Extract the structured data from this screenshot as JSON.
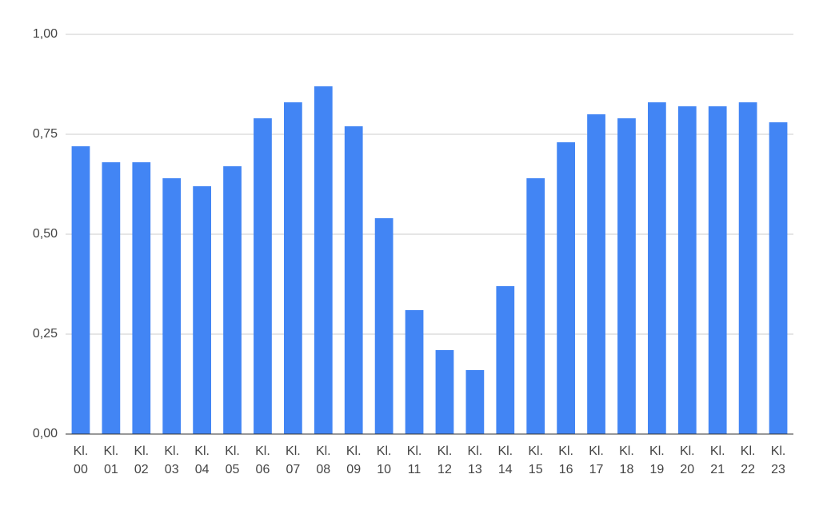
{
  "chart_data": {
    "type": "bar",
    "categories": [
      "Kl. 00",
      "Kl. 01",
      "Kl. 02",
      "Kl. 03",
      "Kl. 04",
      "Kl. 05",
      "Kl. 06",
      "Kl. 07",
      "Kl. 08",
      "Kl. 09",
      "Kl. 10",
      "Kl. 11",
      "Kl. 12",
      "Kl. 13",
      "Kl. 14",
      "Kl. 15",
      "Kl. 16",
      "Kl. 17",
      "Kl. 18",
      "Kl. 19",
      "Kl. 20",
      "Kl. 21",
      "Kl. 22",
      "Kl. 23"
    ],
    "values": [
      0.72,
      0.68,
      0.68,
      0.64,
      0.62,
      0.67,
      0.79,
      0.83,
      0.87,
      0.77,
      0.54,
      0.31,
      0.21,
      0.16,
      0.37,
      0.64,
      0.73,
      0.8,
      0.79,
      0.83,
      0.82,
      0.82,
      0.83,
      0.78
    ],
    "color": "#4285f4",
    "ylim": [
      0,
      1
    ],
    "yticks": [
      {
        "value": 0,
        "label": "0,00"
      },
      {
        "value": 0.25,
        "label": "0,25"
      },
      {
        "value": 0.5,
        "label": "0,50"
      },
      {
        "value": 0.75,
        "label": "0,75"
      },
      {
        "value": 1,
        "label": "1,00"
      }
    ],
    "grid": true
  }
}
